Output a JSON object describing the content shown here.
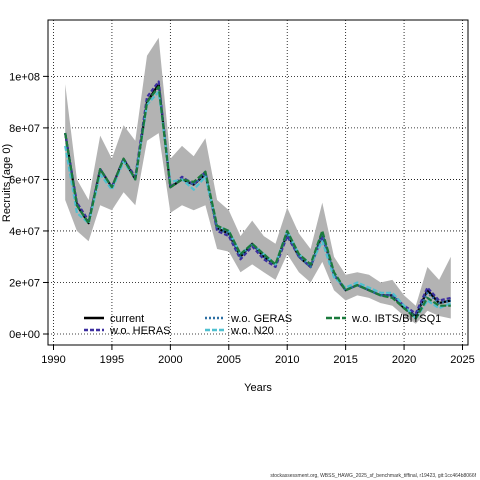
{
  "chart_data": {
    "type": "line",
    "xlabel": "Years",
    "ylabel": "Recruits (age 0)",
    "xlim": [
      1990,
      2025
    ],
    "ylim": [
      0,
      118000000
    ],
    "grid": true,
    "legend_position": "bottom",
    "x_ticks": [
      1990,
      1995,
      2000,
      2005,
      2010,
      2015,
      2020,
      2025
    ],
    "y_ticks": [
      {
        "value": 0,
        "label": "0e+00"
      },
      {
        "value": 20000000,
        "label": "2e+07"
      },
      {
        "value": 40000000,
        "label": "4e+07"
      },
      {
        "value": 60000000,
        "label": "6e+07"
      },
      {
        "value": 80000000,
        "label": "8e+07"
      },
      {
        "value": 100000000,
        "label": "1e+08"
      }
    ],
    "x": [
      1991,
      1992,
      1993,
      1994,
      1995,
      1996,
      1997,
      1998,
      1999,
      2000,
      2001,
      2002,
      2003,
      2004,
      2005,
      2006,
      2007,
      2008,
      2009,
      2010,
      2011,
      2012,
      2013,
      2014,
      2015,
      2016,
      2017,
      2018,
      2019,
      2020,
      2021,
      2022,
      2023,
      2024
    ],
    "band": {
      "lower": [
        52000000,
        40000000,
        36000000,
        50000000,
        48000000,
        55000000,
        50000000,
        75000000,
        78000000,
        47000000,
        50000000,
        48000000,
        50000000,
        33000000,
        32000000,
        24000000,
        27000000,
        24000000,
        21000000,
        31000000,
        24000000,
        20000000,
        28000000,
        17000000,
        13000000,
        15000000,
        14000000,
        12000000,
        11000000,
        7000000,
        4000000,
        9000000,
        7000000,
        6000000
      ],
      "upper": [
        97000000,
        60000000,
        52000000,
        77000000,
        68000000,
        81000000,
        75000000,
        108000000,
        115000000,
        68000000,
        73000000,
        69000000,
        76000000,
        52000000,
        48000000,
        38000000,
        44000000,
        38000000,
        35000000,
        49000000,
        39000000,
        33000000,
        51000000,
        30000000,
        23000000,
        24000000,
        23000000,
        20000000,
        21000000,
        15000000,
        11000000,
        26000000,
        21000000,
        30000000
      ],
      "color": "#b3b3b3"
    },
    "series": [
      {
        "name": "current",
        "color": "#000000",
        "dash": "solid",
        "width": 2.2,
        "values": [
          78000000,
          50000000,
          43000000,
          64000000,
          57000000,
          68000000,
          60000000,
          90000000,
          97000000,
          57000000,
          60000000,
          58000000,
          62000000,
          41000000,
          39000000,
          30000000,
          35000000,
          30000000,
          27000000,
          39000000,
          30000000,
          26000000,
          39000000,
          23000000,
          17000000,
          19000000,
          17000000,
          15000000,
          15000000,
          10000000,
          7000000,
          17000000,
          12000000,
          13000000
        ]
      },
      {
        "name": "w.o. HERAS",
        "color": "#3d2fa0",
        "dash": "4,2",
        "width": 2.2,
        "values": [
          78000000,
          51000000,
          44000000,
          64000000,
          57000000,
          68000000,
          61000000,
          92000000,
          98000000,
          57000000,
          61000000,
          58000000,
          63000000,
          40000000,
          38000000,
          29000000,
          34000000,
          29000000,
          26000000,
          38000000,
          30000000,
          26000000,
          38000000,
          23000000,
          17000000,
          19000000,
          17000000,
          15000000,
          15000000,
          11000000,
          8000000,
          18000000,
          13000000,
          14000000
        ]
      },
      {
        "name": "w.o. GERAS",
        "color": "#2c6fa3",
        "dash": "2,2",
        "width": 2.2,
        "values": [
          78000000,
          50000000,
          43000000,
          64000000,
          57000000,
          68000000,
          60000000,
          90000000,
          96000000,
          57000000,
          60000000,
          58000000,
          62000000,
          41000000,
          39000000,
          30000000,
          35000000,
          30000000,
          27000000,
          39000000,
          30000000,
          26000000,
          39000000,
          23000000,
          17000000,
          19000000,
          17000000,
          15000000,
          15000000,
          10000000,
          7000000,
          16000000,
          12000000,
          13000000
        ]
      },
      {
        "name": "w.o. N20",
        "color": "#4fc0d0",
        "dash": "5,2",
        "width": 2.2,
        "values": [
          73000000,
          47000000,
          43000000,
          62000000,
          56000000,
          67000000,
          60000000,
          89000000,
          94000000,
          59000000,
          60000000,
          56000000,
          61000000,
          42000000,
          40000000,
          31000000,
          35000000,
          31000000,
          27000000,
          40000000,
          31000000,
          27000000,
          36000000,
          22000000,
          18000000,
          20000000,
          18000000,
          16000000,
          16000000,
          11000000,
          6000000,
          13000000,
          10000000,
          12000000
        ]
      },
      {
        "name": "w.o. IBTS/BITSQ1",
        "color": "#1a7a3c",
        "dash": "6,2",
        "width": 2.2,
        "values": [
          78000000,
          50000000,
          43000000,
          64000000,
          57000000,
          68000000,
          60000000,
          90000000,
          96000000,
          57000000,
          60000000,
          59000000,
          63000000,
          42000000,
          40000000,
          31000000,
          35000000,
          31000000,
          27000000,
          40000000,
          31000000,
          27000000,
          40000000,
          24000000,
          17000000,
          19000000,
          17000000,
          15000000,
          14000000,
          10000000,
          6000000,
          14000000,
          11000000,
          11000000
        ]
      }
    ]
  },
  "footer_text": "stockassessment.org, WBSS_HAWG_2025_sf_benchmark_tiffinal, r19423, git:1cc464b8066f"
}
